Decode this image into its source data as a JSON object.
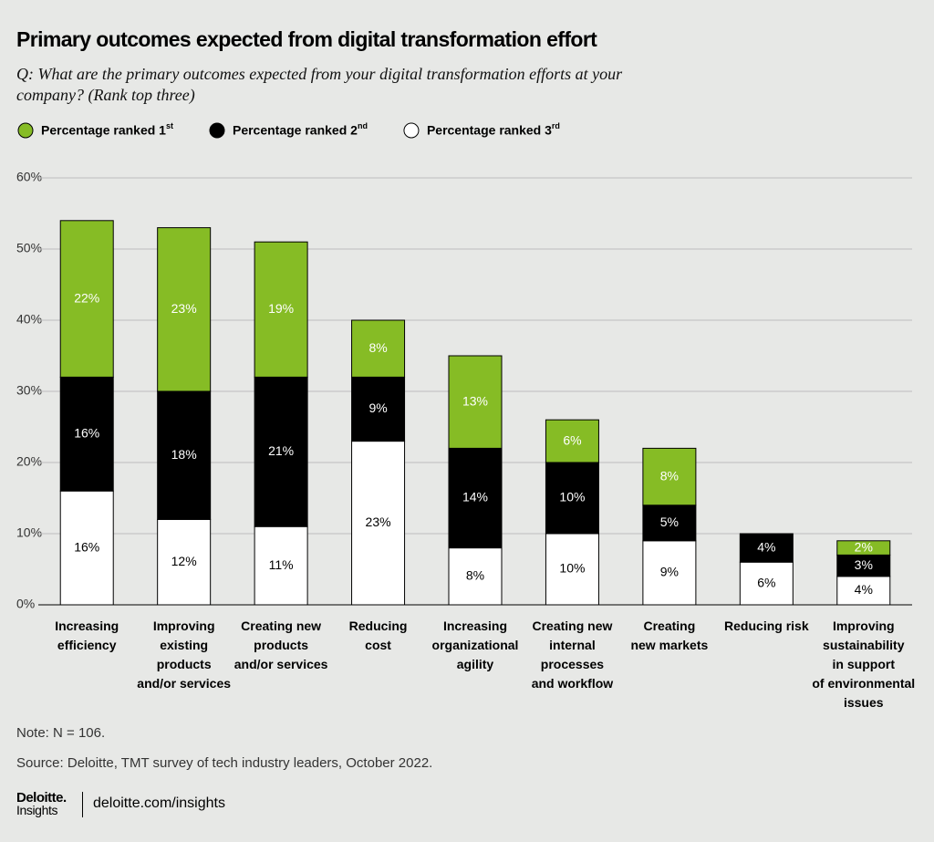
{
  "chart_data": {
    "type": "stacked_bar",
    "title": "Primary outcomes expected from digital transformation effort",
    "subtitle": "Q: What are the primary outcomes expected from your digital transformation efforts at your company? (Rank top three)",
    "categories": [
      "Increasing\nefficiency",
      "Improving\nexisting\nproducts\nand/or services",
      "Creating new\nproducts\nand/or services",
      "Reducing\ncost",
      "Increasing\norganizational\nagility",
      "Creating new\ninternal\nprocesses\nand workflow",
      "Creating\nnew markets",
      "Reducing risk",
      "Improving\nsustainability\nin support\nof environmental\nissues"
    ],
    "series": [
      {
        "name": "Percentage ranked 3rd",
        "color": "#ffffff",
        "values": [
          16,
          12,
          11,
          23,
          8,
          10,
          9,
          6,
          4
        ],
        "value_labels": [
          "16%",
          "12%",
          "11%",
          "23%",
          "8%",
          "10%",
          "9%",
          "6%",
          "4%"
        ]
      },
      {
        "name": "Percentage ranked 2nd",
        "color": "#000000",
        "values": [
          16,
          18,
          21,
          9,
          14,
          10,
          5,
          4,
          3
        ],
        "value_labels": [
          "16%",
          "18%",
          "21%",
          "9%",
          "14%",
          "10%",
          "5%",
          "4%",
          "3%"
        ]
      },
      {
        "name": "Percentage ranked 1st",
        "color": "#86bc25",
        "values": [
          22,
          23,
          19,
          8,
          13,
          6,
          8,
          null,
          2
        ],
        "value_labels": [
          "22%",
          "23%",
          "19%",
          "8%",
          "13%",
          "6%",
          "8%",
          null,
          "2%"
        ]
      }
    ],
    "legend_order": [
      2,
      1,
      0
    ],
    "ylim": [
      0,
      60
    ],
    "yticks": [
      {
        "value": 0,
        "label": "0%"
      },
      {
        "value": 10,
        "label": "10%"
      },
      {
        "value": 20,
        "label": "20%"
      },
      {
        "value": 30,
        "label": "30%"
      },
      {
        "value": 40,
        "label": "40%"
      },
      {
        "value": 50,
        "label": "50%"
      },
      {
        "value": 60,
        "label": "60%"
      }
    ],
    "grid": true,
    "note": "Note: N = 106.",
    "source": "Source: Deloitte, TMT survey of tech industry leaders, October 2022.",
    "brand": "Deloitte.",
    "brand_sub": "Insights",
    "url": "deloitte.com/insights"
  }
}
